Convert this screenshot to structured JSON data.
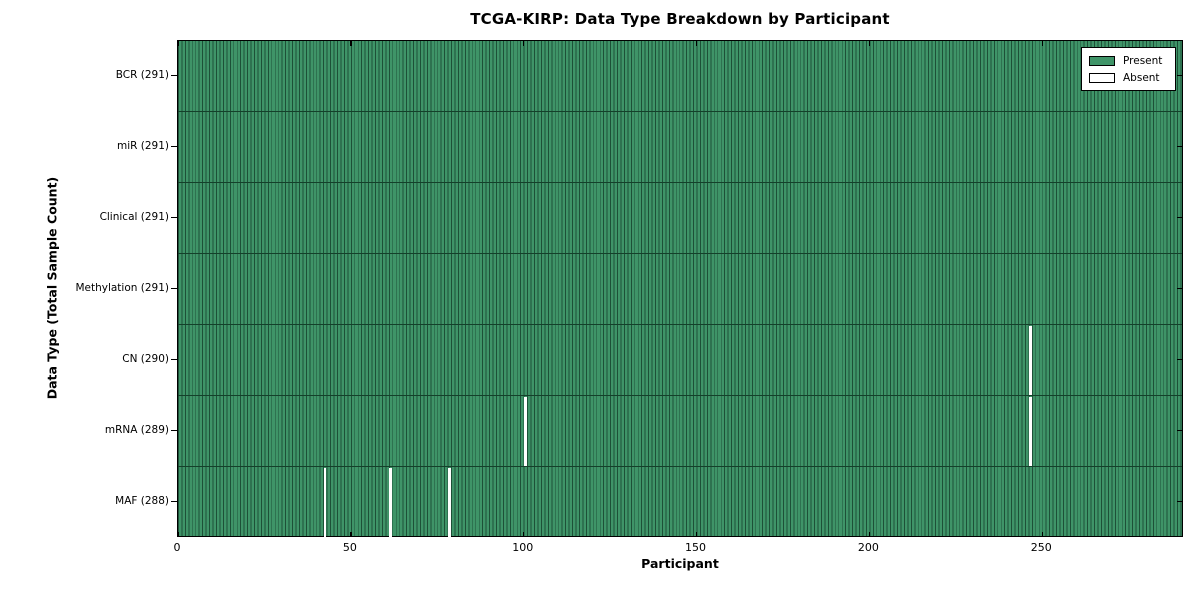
{
  "chart_data": {
    "type": "heatmap",
    "title": "TCGA-KIRP: Data Type Breakdown by Participant",
    "xlabel": "Participant",
    "ylabel": "Data Type (Total Sample Count)",
    "n_participants": 291,
    "x_ticks": [
      0,
      50,
      100,
      150,
      200,
      250
    ],
    "x_range": [
      0,
      291
    ],
    "rows": [
      {
        "data_type": "BCR",
        "label": "BCR (291)",
        "total_samples": 291,
        "absent_participants": []
      },
      {
        "data_type": "miR",
        "label": "miR (291)",
        "total_samples": 291,
        "absent_participants": []
      },
      {
        "data_type": "Clinical",
        "label": "Clinical (291)",
        "total_samples": 291,
        "absent_participants": []
      },
      {
        "data_type": "Methylation",
        "label": "Methylation (291)",
        "total_samples": 291,
        "absent_participants": []
      },
      {
        "data_type": "CN",
        "label": "CN (290)",
        "total_samples": 290,
        "absent_participants": [
          246
        ]
      },
      {
        "data_type": "mRNA",
        "label": "mRNA (289)",
        "total_samples": 289,
        "absent_participants": [
          100,
          246
        ]
      },
      {
        "data_type": "MAF",
        "label": "MAF (288)",
        "total_samples": 288,
        "absent_participants": [
          42,
          61,
          78
        ]
      }
    ],
    "legend": {
      "position": "upper right",
      "entries": [
        {
          "label": "Present",
          "color": "#3f9468"
        },
        {
          "label": "Absent",
          "color": "#ffffff"
        }
      ]
    },
    "colors": {
      "present": "#3f9468",
      "absent": "#ffffff",
      "cell_edge": "#1d5037",
      "row_line": "#14402a",
      "frame": "#000000",
      "background": "#ffffff"
    }
  }
}
